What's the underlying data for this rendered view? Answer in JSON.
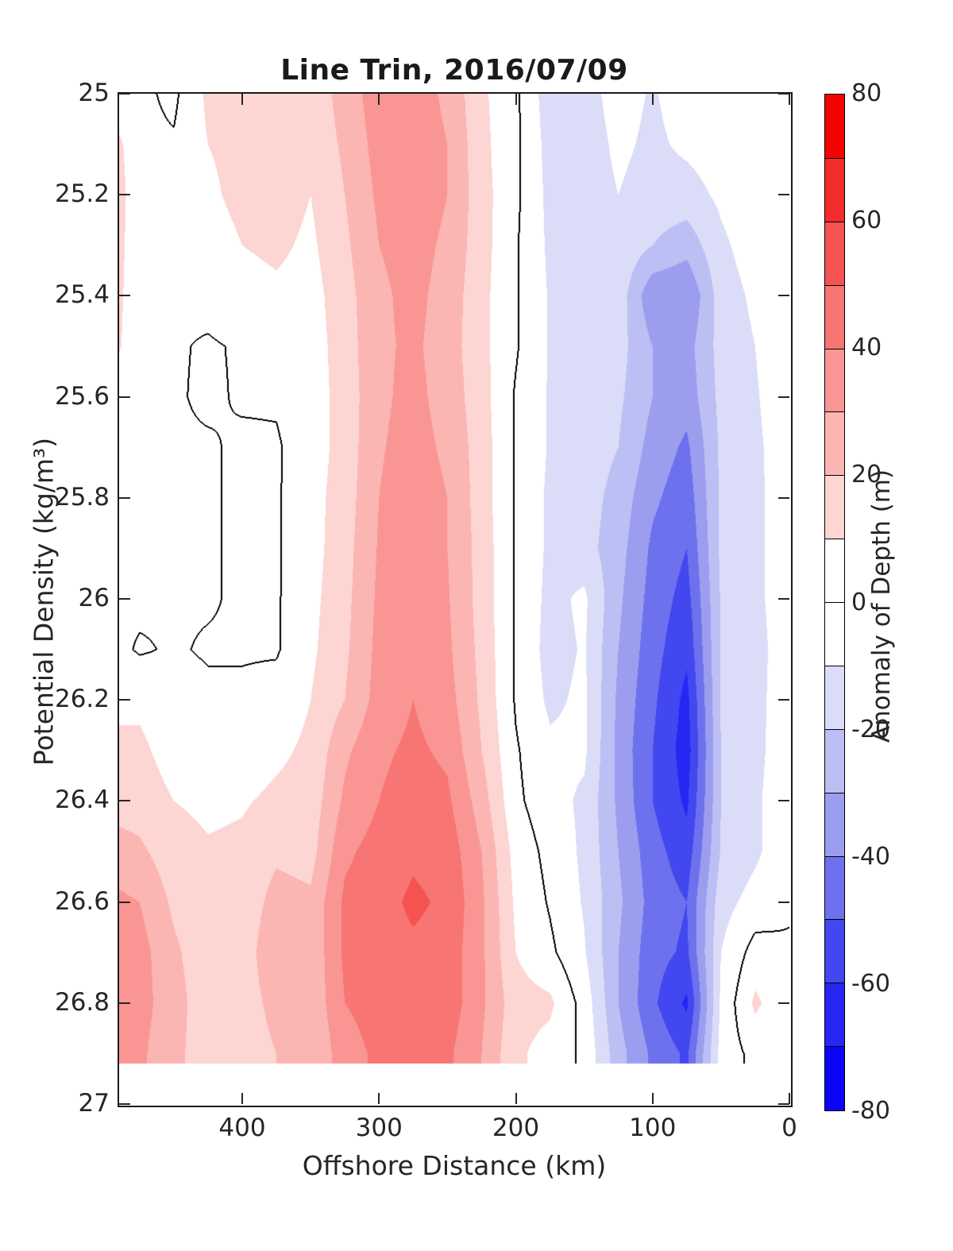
{
  "chart_data": {
    "type": "filled_contour",
    "title": "Line Trin, 2016/07/09",
    "xlabel": "Offshore Distance (km)",
    "ylabel": "Potential Density (kg/m³)",
    "colorbar_label": "Anomaly of Depth (m)",
    "x_axis": {
      "range": [
        0,
        490
      ],
      "reversed": true,
      "ticks": [
        400,
        300,
        200,
        100,
        0
      ]
    },
    "y_axis": {
      "range": [
        25,
        27
      ],
      "increasing_downward": true,
      "ticks": [
        25,
        25.2,
        25.4,
        25.6,
        25.8,
        26,
        26.2,
        26.4,
        26.6,
        26.8,
        27
      ],
      "tick_labels": [
        "25",
        "25.2",
        "25.4",
        "25.6",
        "25.8",
        "26",
        "26.2",
        "26.4",
        "26.6",
        "26.8",
        "27"
      ]
    },
    "colorbar_ticks": [
      80,
      60,
      40,
      20,
      0,
      -20,
      -40,
      -60,
      -80
    ],
    "levels": [
      -80,
      -70,
      -60,
      -50,
      -40,
      -30,
      -20,
      -10,
      0,
      10,
      20,
      30,
      40,
      50,
      60,
      70,
      80
    ],
    "level_colors": [
      "#0A05F7",
      "#2727F3",
      "#4347F0",
      "#6E71ED",
      "#9B9EEF",
      "#BCBFF4",
      "#DADCF8",
      "#FFFFFF",
      "#FFFFFF",
      "#FDD5D3",
      "#FBB5B3",
      "#F99694",
      "#F77573",
      "#F55351",
      "#F32C2C",
      "#F40303"
    ],
    "zero_contour_color": "#000000",
    "background_color": "#FFFFFF",
    "grid": false,
    "y_data_max": 26.92,
    "x_km": [
      0,
      25,
      50,
      75,
      100,
      125,
      150,
      175,
      200,
      225,
      250,
      275,
      300,
      325,
      350,
      375,
      400,
      425,
      450,
      475,
      490
    ],
    "y_density": [
      25.0,
      25.1,
      25.2,
      25.3,
      25.4,
      25.5,
      25.6,
      25.7,
      25.8,
      25.9,
      26.0,
      26.1,
      26.2,
      26.3,
      26.4,
      26.5,
      26.6,
      26.7,
      26.8,
      26.9
    ],
    "z_anomaly_m": [
      [
        -1,
        -2,
        -3,
        -5,
        -11,
        -6,
        -14,
        -16,
        2,
        12,
        28,
        35,
        35,
        25,
        12,
        12,
        12,
        12,
        -2,
        2,
        2
      ],
      [
        -1,
        -2,
        -5,
        -8,
        -12,
        -8,
        -15,
        -14,
        2,
        13,
        30,
        36,
        34,
        22,
        12,
        14,
        13,
        10,
        1,
        2,
        12
      ],
      [
        -1,
        -3,
        -8,
        -14,
        -14,
        -10,
        -15,
        -13,
        2,
        14,
        30,
        36,
        32,
        20,
        10,
        15,
        13,
        8,
        1,
        2,
        14
      ],
      [
        -2,
        -5,
        -12,
        -26,
        -20,
        -12,
        -14,
        -12,
        1,
        14,
        28,
        34,
        30,
        18,
        8,
        12,
        10,
        5,
        1,
        2,
        13
      ],
      [
        -2,
        -8,
        -15,
        -40,
        -38,
        -14,
        -13,
        -11,
        1,
        13,
        26,
        33,
        28,
        16,
        6,
        8,
        6,
        3,
        1,
        2,
        12
      ],
      [
        -2,
        -10,
        -16,
        -34,
        -30,
        -16,
        -13,
        -11,
        1,
        13,
        25,
        32,
        28,
        15,
        5,
        3,
        1,
        -1,
        1,
        2,
        11
      ],
      [
        -3,
        -11,
        -17,
        -36,
        -30,
        -18,
        -14,
        -11,
        -1,
        14,
        26,
        33,
        28,
        14,
        5,
        1,
        1,
        -1.5,
        1,
        2,
        3
      ],
      [
        -4,
        -12,
        -18,
        -42,
        -34,
        -20,
        -14,
        -11,
        -1,
        15,
        28,
        34,
        29,
        14,
        5,
        -1,
        -1.5,
        1,
        1,
        2,
        2
      ],
      [
        -5,
        -12,
        -18,
        -46,
        -38,
        -24,
        -15,
        -12,
        -1,
        15,
        30,
        36,
        30,
        15,
        6,
        -1,
        -1.5,
        1,
        1,
        2,
        2
      ],
      [
        -5,
        -12,
        -18,
        -50,
        -42,
        -26,
        -16,
        -12,
        -1,
        16,
        30,
        37,
        31,
        16,
        6,
        -1,
        -1.5,
        1,
        1,
        2,
        2
      ],
      [
        -5,
        -12,
        -19,
        -54,
        -44,
        -28,
        -8,
        -13,
        -1,
        16,
        31,
        38,
        32,
        17,
        7,
        -1,
        -1.5,
        1,
        1,
        2,
        2
      ],
      [
        -5,
        -13,
        -19,
        -58,
        -46,
        -30,
        -9,
        -14,
        -1,
        17,
        32,
        39,
        33,
        18,
        8,
        -1,
        -1,
        -1,
        1,
        -1,
        2
      ],
      [
        -4,
        -13,
        -19,
        -63,
        -48,
        -32,
        -8,
        -12,
        -1,
        18,
        34,
        40,
        34,
        20,
        10,
        4,
        2,
        2,
        4,
        8,
        8
      ],
      [
        -3,
        -13,
        -20,
        -65,
        -50,
        -33,
        -8,
        -8,
        1,
        20,
        38,
        42,
        38,
        28,
        12,
        8,
        5,
        4,
        6,
        12,
        12
      ],
      [
        -2,
        -12,
        -20,
        -62,
        -50,
        -32,
        -12,
        -6,
        2,
        25,
        42,
        45,
        40,
        32,
        14,
        12,
        9,
        8,
        10,
        15,
        16
      ],
      [
        -2,
        -12,
        -19,
        -56,
        -46,
        -30,
        -12,
        -3,
        6,
        30,
        46,
        48,
        44,
        38,
        16,
        18,
        12,
        11,
        14,
        22,
        24
      ],
      [
        -1,
        -6,
        -14,
        -50,
        -44,
        -28,
        -11,
        -1,
        8,
        32,
        48,
        52,
        46,
        42,
        22,
        24,
        13,
        13,
        18,
        30,
        32
      ],
      [
        1,
        4,
        -10,
        -52,
        -46,
        -30,
        -9,
        2,
        10,
        32,
        46,
        48,
        46,
        42,
        22,
        30,
        13,
        13,
        22,
        34,
        35
      ],
      [
        2,
        12,
        -8,
        -62,
        -48,
        -30,
        -4,
        12,
        14,
        32,
        46,
        46,
        44,
        40,
        22,
        24,
        14,
        14,
        24,
        34,
        35
      ],
      [
        1,
        3,
        -6,
        -52,
        -42,
        -26,
        -2,
        6,
        12,
        30,
        42,
        44,
        42,
        36,
        20,
        20,
        13,
        14,
        23,
        32,
        33
      ]
    ]
  }
}
